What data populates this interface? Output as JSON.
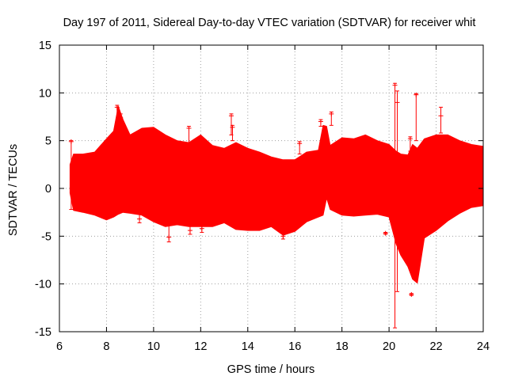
{
  "chart_data": {
    "type": "scatter",
    "title": "Day 197 of 2011, Sidereal Day-to-day VTEC variation (SDTVAR) for receiver whit",
    "xlabel": "GPS time / hours",
    "ylabel": "SDTVAR / TECUs",
    "xlim": [
      6,
      24
    ],
    "ylim": [
      -15,
      15
    ],
    "grid": true,
    "marker": "plus-with-errorbars",
    "color": "#ff0000",
    "x_ticks": [
      "6",
      "8",
      "10",
      "12",
      "14",
      "16",
      "18",
      "20",
      "22",
      "24"
    ],
    "y_ticks": [
      "-15",
      "-10",
      "-5",
      "0",
      "5",
      "10",
      "15"
    ],
    "envelope": {
      "x": [
        6.45,
        6.6,
        7.0,
        7.5,
        8.0,
        8.3,
        8.5,
        8.7,
        9.0,
        9.5,
        10.0,
        10.5,
        11.0,
        11.5,
        12.0,
        12.5,
        13.0,
        13.5,
        14.0,
        14.5,
        15.0,
        15.5,
        16.0,
        16.5,
        17.0,
        17.2,
        17.35,
        17.5,
        18.0,
        18.5,
        19.0,
        19.5,
        20.0,
        20.3,
        20.5,
        20.8,
        21.0,
        21.2,
        21.5,
        22.0,
        22.5,
        23.0,
        23.5,
        24.0
      ],
      "upper": [
        2.5,
        3.6,
        3.6,
        3.8,
        5.2,
        6.0,
        8.6,
        7.2,
        5.6,
        6.3,
        6.4,
        5.6,
        5.0,
        4.8,
        5.6,
        4.5,
        4.2,
        4.8,
        4.2,
        3.8,
        3.3,
        3.0,
        3.0,
        3.8,
        4.0,
        6.6,
        6.5,
        4.5,
        5.3,
        5.2,
        5.6,
        5.0,
        4.6,
        3.9,
        3.6,
        3.5,
        4.6,
        4.2,
        5.2,
        5.6,
        5.6,
        5.0,
        4.6,
        4.4
      ],
      "lower": [
        -0.5,
        -2.3,
        -2.5,
        -2.8,
        -3.3,
        -3.0,
        -2.7,
        -2.5,
        -2.6,
        -2.8,
        -3.5,
        -4.0,
        -3.8,
        -4.0,
        -4.0,
        -4.0,
        -3.6,
        -4.3,
        -4.4,
        -4.4,
        -4.0,
        -4.9,
        -4.5,
        -3.5,
        -3.0,
        -2.8,
        -1.0,
        -2.2,
        -2.8,
        -2.9,
        -2.8,
        -2.7,
        -3.0,
        -5.8,
        -7.0,
        -8.2,
        -9.5,
        -9.9,
        -5.2,
        -4.4,
        -3.4,
        -2.6,
        -2.0,
        -1.8
      ]
    },
    "error_bars": [
      {
        "x": 6.5,
        "y": 4.9,
        "low": -2.2,
        "high": 5.0
      },
      {
        "x": 8.45,
        "y": 8.5,
        "low": 4.5,
        "high": 8.7
      },
      {
        "x": 8.6,
        "y": 7.4,
        "low": 3.5,
        "high": 7.8
      },
      {
        "x": 9.4,
        "y": -3.2,
        "low": -3.6,
        "high": -2.6
      },
      {
        "x": 10.65,
        "y": -5.1,
        "low": -5.6,
        "high": -3.8
      },
      {
        "x": 11.5,
        "y": 6.3,
        "low": 4.8,
        "high": 6.5
      },
      {
        "x": 11.55,
        "y": -4.4,
        "low": -4.8,
        "high": -3.6
      },
      {
        "x": 12.05,
        "y": -4.2,
        "low": -4.6,
        "high": -3.8
      },
      {
        "x": 13.3,
        "y": 7.6,
        "low": 5.6,
        "high": 7.8
      },
      {
        "x": 13.35,
        "y": 6.4,
        "low": 5.0,
        "high": 6.6
      },
      {
        "x": 15.5,
        "y": -5.0,
        "low": -5.3,
        "high": -4.0
      },
      {
        "x": 16.2,
        "y": 4.7,
        "low": 3.6,
        "high": 4.9
      },
      {
        "x": 17.1,
        "y": 7.0,
        "low": 6.5,
        "high": 7.2
      },
      {
        "x": 17.55,
        "y": 7.8,
        "low": 6.6,
        "high": 8.0
      },
      {
        "x": 19.85,
        "y": -4.7,
        "low": -4.8,
        "high": -4.6
      },
      {
        "x": 20.25,
        "y": 10.8,
        "low": -14.6,
        "high": 11.0
      },
      {
        "x": 20.35,
        "y": 9.0,
        "low": -10.8,
        "high": 10.2
      },
      {
        "x": 20.9,
        "y": 5.2,
        "low": 3.9,
        "high": 5.4
      },
      {
        "x": 20.95,
        "y": -11.1,
        "low": -11.2,
        "high": -11.0
      },
      {
        "x": 21.15,
        "y": 9.8,
        "low": 5.0,
        "high": 9.9
      },
      {
        "x": 22.2,
        "y": 7.6,
        "low": 5.8,
        "high": 8.5
      }
    ]
  }
}
